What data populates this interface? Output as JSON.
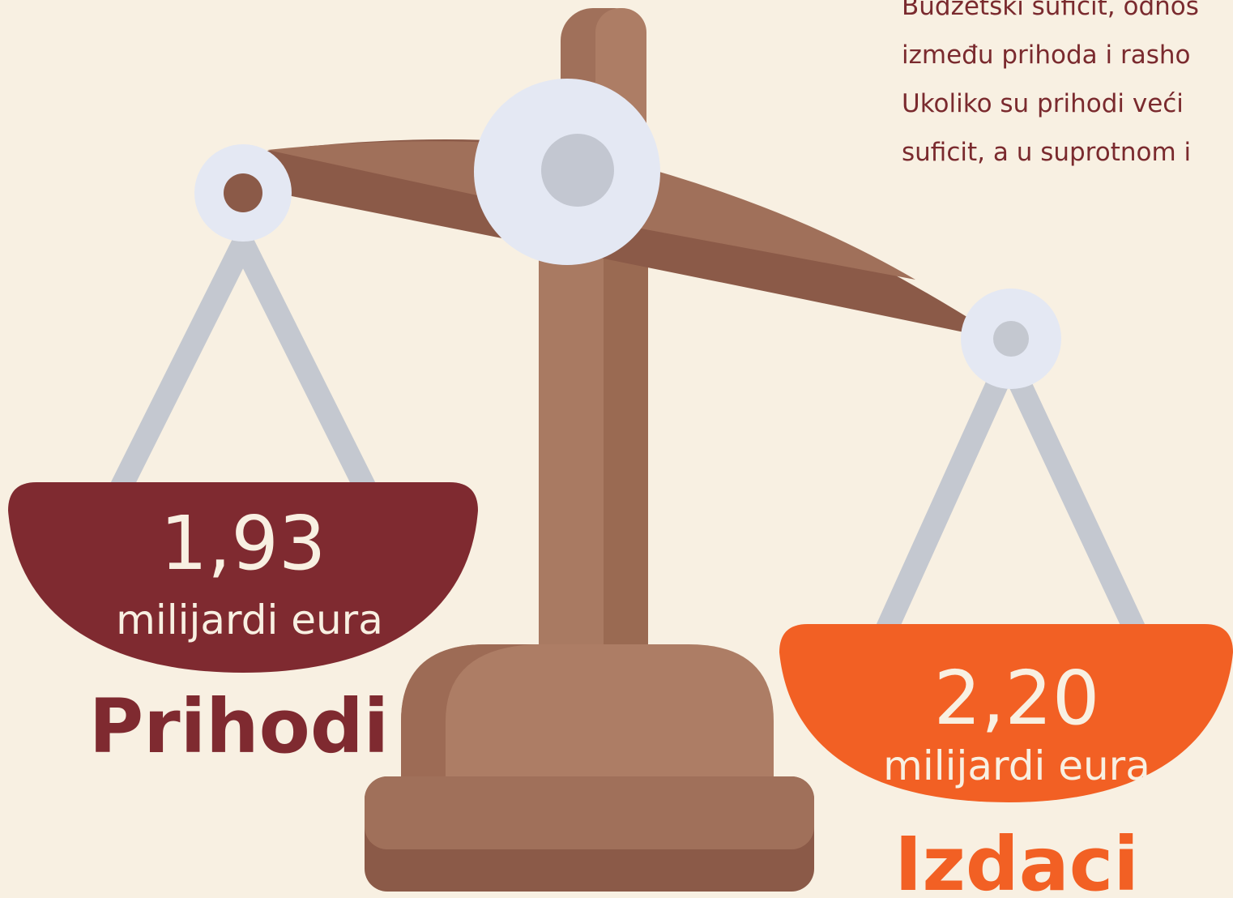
{
  "paragraph": {
    "lines": [
      "Budžetski suficit, odnos",
      "između prihoda i rasho",
      "Ukoliko su prihodi veći",
      "suficit, a u suprotnom i"
    ]
  },
  "revenue": {
    "amount": "1,93",
    "unit": "milijardi eura",
    "label": "Prihodi"
  },
  "expenditure": {
    "amount": "2,20",
    "unit": "milijardi eura",
    "label": "Izdaci"
  }
}
